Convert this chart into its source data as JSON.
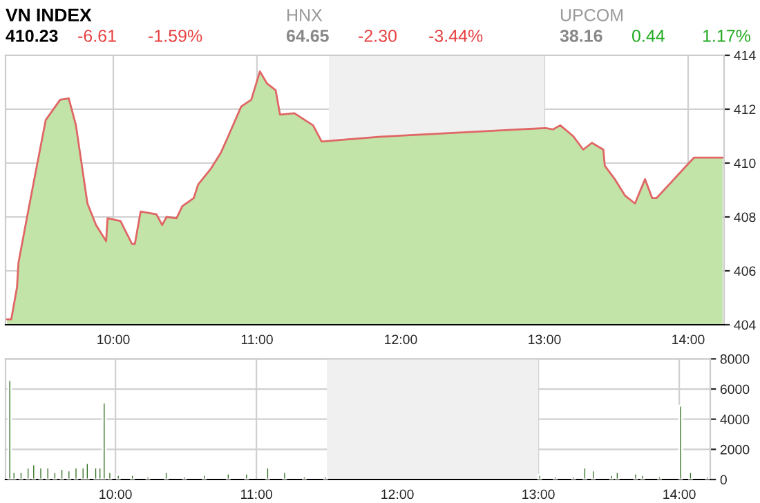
{
  "chart_data": [
    {
      "type": "area",
      "annotations": [
        "VN INDEX",
        "410.23",
        "-6.61",
        "-1.59%",
        "HNX",
        "64.65",
        "-2.30",
        "-3.44%",
        "UPCOM",
        "38.16",
        "0.44",
        "1.17%"
      ],
      "series": [
        {
          "color": "#c2e4a8",
          "x": [
            9.26,
            9.29,
            9.33,
            9.34,
            9.4,
            9.45,
            9.53,
            9.63,
            9.69,
            9.74,
            9.82,
            9.88,
            9.95,
            9.96,
            10.05,
            10.13,
            10.15,
            10.19,
            10.3,
            10.34,
            10.37,
            10.44,
            10.48,
            10.56,
            10.59,
            10.68,
            10.75,
            10.8,
            10.89,
            10.96,
            11.02,
            11.07,
            11.13,
            11.16,
            11.26,
            11.39,
            11.45,
            11.86,
            13.01,
            13.06,
            13.11,
            13.2,
            13.27,
            13.33,
            13.41,
            13.42,
            13.49,
            13.56,
            13.63,
            13.7,
            13.75,
            13.78,
            14.04,
            14.24
          ],
          "values": [
            404.2,
            404.2,
            405.4,
            406.3,
            408.0,
            409.4,
            411.6,
            412.35,
            412.4,
            411.4,
            408.5,
            407.7,
            407.1,
            407.95,
            407.85,
            407.0,
            407.0,
            408.2,
            408.1,
            407.7,
            408.0,
            407.95,
            408.4,
            408.7,
            409.2,
            409.8,
            410.4,
            411.0,
            412.1,
            412.35,
            413.4,
            412.95,
            412.7,
            411.8,
            411.85,
            411.4,
            410.8,
            410.98,
            411.3,
            411.25,
            411.4,
            411.0,
            410.5,
            410.75,
            410.5,
            409.9,
            409.4,
            408.8,
            408.5,
            409.4,
            408.7,
            408.7,
            410.2,
            410.2
          ]
        },
        {
          "type": "line",
          "color": "#e06666",
          "x": [
            9.26,
            9.29,
            9.33,
            9.34,
            9.4,
            9.45,
            9.53,
            9.63,
            9.69,
            9.74,
            9.82,
            9.88,
            9.95,
            9.96,
            10.05,
            10.13,
            10.15,
            10.19,
            10.3,
            10.34,
            10.37,
            10.44,
            10.48,
            10.56,
            10.59,
            10.68,
            10.75,
            10.8,
            10.89,
            10.96,
            11.02,
            11.07,
            11.13,
            11.16,
            11.26,
            11.39,
            11.45,
            11.86,
            13.01,
            13.06,
            13.11,
            13.2,
            13.27,
            13.33,
            13.41,
            13.42,
            13.49,
            13.56,
            13.63,
            13.7,
            13.75,
            13.78,
            14.04,
            14.24
          ],
          "values": [
            404.2,
            404.2,
            405.4,
            406.3,
            408.0,
            409.4,
            411.6,
            412.35,
            412.4,
            411.4,
            408.5,
            407.7,
            407.1,
            407.95,
            407.85,
            407.0,
            407.0,
            408.2,
            408.1,
            407.7,
            408.0,
            407.95,
            408.4,
            408.7,
            409.2,
            409.8,
            410.4,
            411.0,
            412.1,
            412.35,
            413.4,
            412.95,
            412.7,
            411.8,
            411.85,
            411.4,
            410.8,
            410.98,
            411.3,
            411.25,
            411.4,
            411.0,
            410.5,
            410.75,
            410.5,
            409.9,
            409.4,
            408.8,
            408.5,
            409.4,
            408.7,
            408.7,
            410.2,
            410.2
          ]
        }
      ],
      "xlim": [
        9.25,
        14.25
      ],
      "ylim": [
        404,
        414
      ],
      "yticks": [
        404,
        406,
        408,
        410,
        412,
        414
      ],
      "xticks": [
        {
          "value": 10,
          "label": "10:00"
        },
        {
          "value": 11,
          "label": "11:00"
        },
        {
          "value": 12,
          "label": "12:00"
        },
        {
          "value": 13,
          "label": "13:00"
        },
        {
          "value": 14,
          "label": "14:00"
        }
      ],
      "bands": [
        {
          "axis": "x",
          "from": 11.5,
          "to": 13,
          "color": "#f0f0f0"
        }
      ],
      "grid": true,
      "legend": false
    },
    {
      "type": "bar",
      "series": [
        {
          "color": "#2e6b1e",
          "x": [
            9.25,
            9.28,
            9.33,
            9.38,
            9.42,
            9.47,
            9.52,
            9.57,
            9.62,
            9.67,
            9.72,
            9.77,
            9.8,
            9.86,
            9.89,
            9.92,
            9.96,
            10.02,
            10.12,
            10.23,
            10.36,
            10.49,
            10.63,
            10.8,
            10.93,
            11.08,
            11.2,
            11.34,
            11.49,
            13.01,
            13.12,
            13.25,
            13.33,
            13.39,
            13.52,
            13.56,
            13.69,
            13.74,
            13.86,
            14.01,
            14.08,
            14.2
          ],
          "values": [
            6600,
            500,
            500,
            800,
            1000,
            800,
            800,
            500,
            700,
            600,
            800,
            800,
            1100,
            800,
            800,
            5100,
            500,
            300,
            300,
            200,
            500,
            200,
            300,
            400,
            400,
            800,
            500,
            200,
            200,
            300,
            200,
            200,
            800,
            600,
            300,
            500,
            400,
            300,
            200,
            4900,
            500,
            200
          ]
        }
      ],
      "xlim": [
        9.22,
        14.22
      ],
      "ylim": [
        0,
        8000
      ],
      "yticks": [
        0,
        2000,
        4000,
        6000,
        8000
      ],
      "xticks": [
        {
          "value": 10,
          "label": "10:00"
        },
        {
          "value": 11,
          "label": "11:00"
        },
        {
          "value": 12,
          "label": "12:00"
        },
        {
          "value": 13,
          "label": "13:00"
        },
        {
          "value": 14,
          "label": "14:00"
        }
      ],
      "bands": [
        {
          "axis": "x",
          "from": 11.5,
          "to": 13,
          "color": "#f0f0f0"
        }
      ],
      "grid": true,
      "legend": false
    }
  ]
}
